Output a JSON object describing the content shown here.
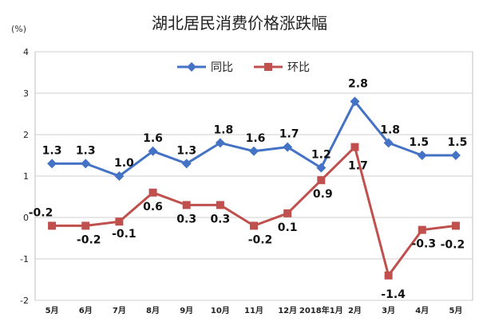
{
  "chart_data": {
    "type": "line",
    "title": "湖北居民消费价格涨跌幅",
    "unit": "(%)",
    "categories": [
      "5月",
      "6月",
      "7月",
      "8月",
      "9月",
      "10月",
      "11月",
      "12月",
      "2018年1月",
      "2月",
      "3月",
      "4月",
      "5月"
    ],
    "ylim": [
      -2,
      4
    ],
    "yticks": [
      -2,
      -1,
      0,
      1,
      2,
      3,
      4
    ],
    "ytick_labels": [
      "-2",
      "-1",
      "0",
      "1",
      "2",
      "3",
      "4"
    ],
    "grid": true,
    "legend_position": "top",
    "series": [
      {
        "name": "同比",
        "color": "#4472C4",
        "marker": "diamond",
        "values": [
          1.3,
          1.3,
          1.0,
          1.6,
          1.3,
          1.8,
          1.6,
          1.7,
          1.2,
          2.8,
          1.8,
          1.5,
          1.5
        ],
        "labels": [
          "1.3",
          "1.3",
          "1.0",
          "1.6",
          "1.3",
          "1.8",
          "1.6",
          "1.7",
          "1.2",
          "2.8",
          "1.8",
          "1.5",
          "1.5"
        ]
      },
      {
        "name": "环比",
        "color": "#C0504D",
        "marker": "square",
        "values": [
          -0.2,
          -0.2,
          -0.1,
          0.6,
          0.3,
          0.3,
          -0.2,
          0.1,
          0.9,
          1.7,
          -1.4,
          -0.3,
          -0.2
        ],
        "labels": [
          "-0.2",
          "-0.2",
          "-0.1",
          "0.6",
          "0.3",
          "0.3",
          "-0.2",
          "0.1",
          "0.9",
          "1.7",
          "-1.4",
          "-0.3",
          "-0.2"
        ]
      }
    ]
  }
}
